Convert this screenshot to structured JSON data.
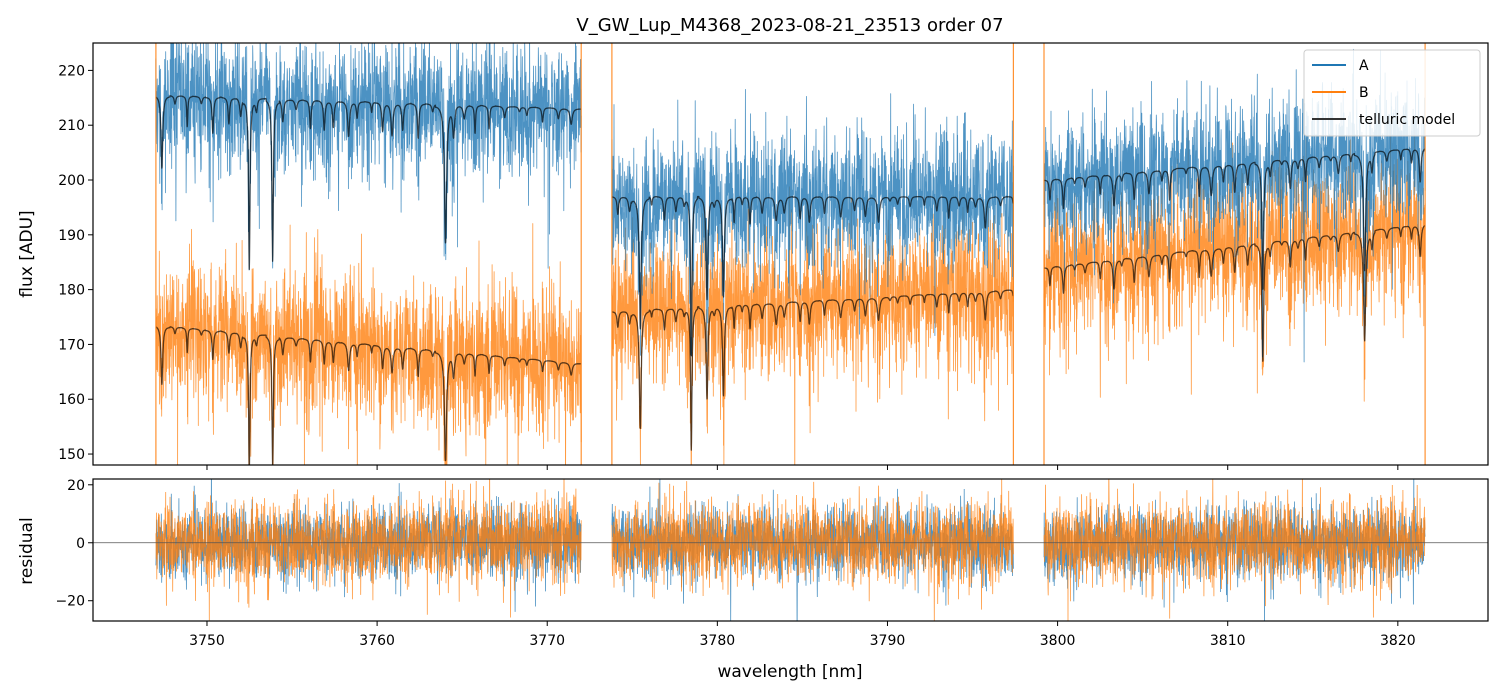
{
  "chart_data": {
    "type": "line",
    "title": "V_GW_Lup_M4368_2023-08-21_23513  order 07",
    "xlabel": "wavelength [nm]",
    "xlim": [
      3743.3,
      3825.3
    ],
    "xticks": [
      3750,
      3760,
      3770,
      3780,
      3790,
      3800,
      3810,
      3820
    ],
    "segments": [
      [
        3747.0,
        3772.0
      ],
      [
        3773.8,
        3797.4
      ],
      [
        3799.2,
        3821.6
      ]
    ],
    "colors": {
      "A": "#1f77b4",
      "B": "#ff7f0e",
      "model": "#000000",
      "zero": "#555555"
    },
    "legend": {
      "placement": "upper right",
      "entries": [
        {
          "label": "A",
          "color": "#1f77b4"
        },
        {
          "label": "B",
          "color": "#ff7f0e"
        },
        {
          "label": "telluric model",
          "color": "#333333"
        }
      ]
    },
    "panels": [
      {
        "name": "flux",
        "ylabel": "flux [ADU]",
        "ylim": [
          148,
          225
        ],
        "yticks": [
          150,
          160,
          170,
          180,
          190,
          200,
          210,
          220
        ],
        "series": [
          {
            "name": "A",
            "continuum": [
              [
                3747.0,
                3772.0,
                215.5,
                213.0
              ],
              [
                3773.8,
                3797.4,
                197.0,
                197.0
              ],
              [
                3799.2,
                3821.6,
                200.0,
                206.0
              ]
            ],
            "noise": 6.0
          },
          {
            "name": "B",
            "continuum": [
              [
                3747.0,
                3772.0,
                173.5,
                166.5
              ],
              [
                3773.8,
                3797.4,
                176.0,
                180.0
              ],
              [
                3799.2,
                3821.6,
                184.0,
                192.0
              ]
            ],
            "noise": 6.5
          },
          {
            "name": "telluric model A",
            "continuum": [
              [
                3747.0,
                3772.0,
                215.5,
                213.0
              ],
              [
                3773.8,
                3797.4,
                197.0,
                197.0
              ],
              [
                3799.2,
                3821.6,
                200.0,
                206.0
              ]
            ]
          },
          {
            "name": "telluric model B",
            "continuum": [
              [
                3747.0,
                3772.0,
                173.5,
                166.5
              ],
              [
                3773.8,
                3797.4,
                176.0,
                180.0
              ],
              [
                3799.2,
                3821.6,
                184.0,
                192.0
              ]
            ]
          }
        ]
      },
      {
        "name": "residual",
        "ylabel": "residual",
        "ylim": [
          -27,
          22
        ],
        "yticks": [
          -20,
          0,
          20
        ],
        "zero_line": 0,
        "series": [
          {
            "name": "A residual",
            "sigma": 6.0
          },
          {
            "name": "B residual",
            "sigma": 7.0
          }
        ]
      }
    ]
  }
}
